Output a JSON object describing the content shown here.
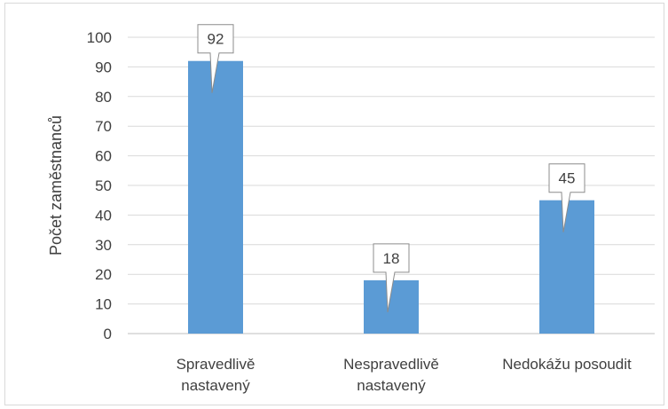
{
  "chart_data": {
    "type": "bar",
    "categories": [
      [
        "Spravedlivě",
        "nastavený"
      ],
      [
        "Nespravedlivě",
        "nastavený"
      ],
      [
        "Nedokážu posoudit"
      ]
    ],
    "values": [
      92,
      18,
      45
    ],
    "data_labels": [
      "92",
      "18",
      "45"
    ],
    "title": "",
    "xlabel": "",
    "ylabel": "Počet zaměstnanců",
    "ylim": [
      0,
      100
    ],
    "ytick_step": 10,
    "yticks": [
      "0",
      "10",
      "20",
      "30",
      "40",
      "50",
      "60",
      "70",
      "80",
      "90",
      "100"
    ],
    "grid": true,
    "legend": "none",
    "colors": {
      "bar": "#5b9bd5",
      "grid": "#d9d9d9",
      "axis": "#bfbfbf",
      "callout_border": "#8c8c8c",
      "text": "#404040"
    }
  }
}
